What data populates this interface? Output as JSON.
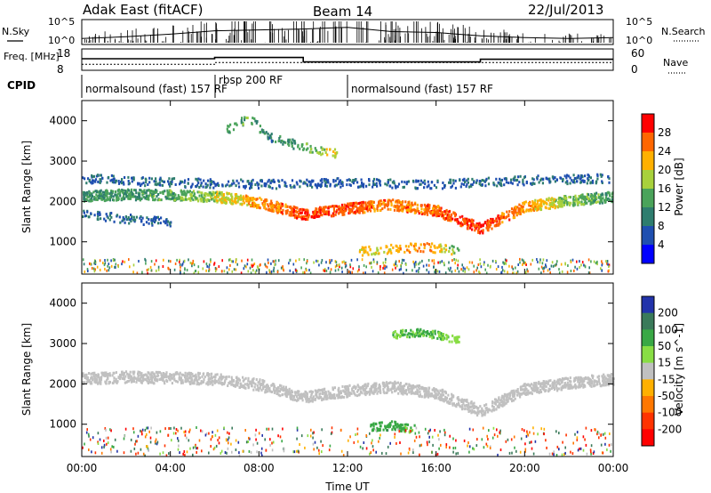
{
  "header": {
    "radar": "Adak East (fitACF)",
    "beam": "Beam 14",
    "date": "22/Jul/2013"
  },
  "colors": {
    "sky_noise": "#000000",
    "search_noise": "#000000",
    "freq": "#000000",
    "nave": "#000000"
  },
  "chart_data": [
    {
      "type": "line",
      "panel": "noise",
      "left_label": "N.Sky",
      "right_label": "N.Search",
      "left_ticks": [
        "10^5",
        "10^0"
      ],
      "right_ticks": [
        "10^5",
        "10^0"
      ],
      "x": [
        0,
        2,
        4,
        6,
        8,
        10,
        12,
        14,
        16,
        18,
        20,
        22,
        24
      ],
      "series": [
        {
          "values": [
            1.0,
            1.4,
            2.0,
            2.8,
            3.0,
            3.2,
            3.6,
            2.6,
            2.4,
            1.6,
            1.2,
            1.0,
            1.2
          ]
        }
      ]
    },
    {
      "type": "line",
      "panel": "frequency",
      "left_label": "Freq. [MHz]",
      "right_label": "Nave",
      "left_ticks": [
        "18",
        "8"
      ],
      "right_ticks": [
        "60",
        "0"
      ],
      "ylim": [
        8,
        18
      ],
      "x": [
        0,
        6,
        6,
        10,
        10,
        18,
        18,
        24
      ],
      "series": [
        {
          "values": [
            13.5,
            13.5,
            14.2,
            14.2,
            11.7,
            11.7,
            13.2,
            13.2
          ]
        }
      ],
      "nave": {
        "x": [
          0,
          6,
          6,
          24
        ],
        "values": [
          14,
          14,
          20,
          20
        ]
      }
    },
    {
      "type": "table",
      "panel": "cpid",
      "label": "CPID",
      "segments": [
        {
          "name": "normalsound (fast) 157 RF",
          "start": 0,
          "end": 6
        },
        {
          "name": "rbsp 200 RF",
          "start": 6,
          "end": 12
        },
        {
          "name": "normalsound (fast) 157 RF",
          "start": 12,
          "end": 24
        }
      ]
    },
    {
      "type": "heatmap",
      "panel": "power",
      "ylabel": "Slant Range [km]",
      "ylim": [
        200,
        4500
      ],
      "yticks": [
        1000,
        2000,
        3000,
        4000
      ],
      "xlim": [
        0,
        24
      ],
      "colorbar": {
        "label": "Power [dB]",
        "ticks": [
          "28",
          "24",
          "20",
          "16",
          "12",
          "8",
          "4"
        ],
        "colors": [
          "#ff0000",
          "#ff6600",
          "#ffb000",
          "#a8d13c",
          "#4aa35a",
          "#2e7d6e",
          "#1f4fb0",
          "#0000ff"
        ]
      },
      "features": [
        {
          "desc": "main band",
          "x": [
            0,
            2,
            4,
            6,
            8,
            10,
            12,
            14,
            16,
            18,
            20,
            22,
            24
          ],
          "range_km": [
            2150,
            2200,
            2180,
            2150,
            2000,
            1700,
            1850,
            1950,
            1800,
            1350,
            1900,
            2050,
            2150
          ],
          "power_db": [
            10,
            11,
            12,
            16,
            22,
            26,
            25,
            23,
            24,
            26,
            22,
            14,
            10
          ]
        },
        {
          "desc": "upper band",
          "x": [
            0,
            4,
            8,
            12,
            16,
            20,
            24
          ],
          "range_km": [
            2600,
            2500,
            2450,
            2500,
            2450,
            2550,
            2600
          ],
          "power_db": [
            6,
            6,
            5,
            5,
            5,
            6,
            6
          ]
        },
        {
          "desc": "lower echo",
          "x": [
            0,
            2,
            4
          ],
          "range_km": [
            1700,
            1600,
            1500
          ],
          "power_db": [
            6,
            6,
            5
          ]
        },
        {
          "desc": "morning clutter",
          "x": [
            12.5,
            14,
            15.5,
            17
          ],
          "range_km": [
            800,
            850,
            900,
            800
          ],
          "power_db": [
            18,
            20,
            22,
            14
          ]
        },
        {
          "desc": "high range patch",
          "x": [
            6.5,
            7.5,
            8.5,
            10.5,
            11.5
          ],
          "range_km": [
            3800,
            4100,
            3600,
            3300,
            3200
          ],
          "power_db": [
            10,
            12,
            8,
            14,
            18
          ]
        }
      ]
    },
    {
      "type": "heatmap",
      "panel": "velocity",
      "xlabel": "Time UT",
      "ylabel": "Slant Range [km]",
      "ylim": [
        200,
        4500
      ],
      "yticks": [
        1000,
        2000,
        3000,
        4000
      ],
      "xlim": [
        0,
        24
      ],
      "xticks": [
        "00:00",
        "04:00",
        "08:00",
        "12:00",
        "16:00",
        "20:00",
        "00:00"
      ],
      "colorbar": {
        "label": "Velocity [m s^-1]",
        "ticks": [
          "200",
          "100",
          "50",
          "15",
          "-15",
          "-50",
          "-100",
          "-200"
        ],
        "colors": [
          "#2233aa",
          "#3a7a5a",
          "#39a845",
          "#88dd44",
          "#c0c0c0",
          "#ffb000",
          "#ff7700",
          "#ff3300",
          "#ff0000"
        ]
      },
      "features": [
        {
          "desc": "ground scatter band",
          "x": [
            0,
            2,
            4,
            6,
            8,
            10,
            12,
            14,
            16,
            18,
            20,
            22,
            24
          ],
          "range_km": [
            2150,
            2200,
            2180,
            2150,
            2000,
            1700,
            1850,
            1950,
            1800,
            1350,
            1900,
            2050,
            2150
          ],
          "velocity": [
            0,
            0,
            0,
            0,
            0,
            0,
            0,
            0,
            0,
            0,
            0,
            0,
            0
          ]
        },
        {
          "desc": "positive velocity echo",
          "x": [
            13,
            14,
            15
          ],
          "range_km": [
            950,
            1000,
            900
          ],
          "velocity": [
            60,
            80,
            50
          ]
        },
        {
          "desc": "high range echo",
          "x": [
            14,
            15.5,
            17
          ],
          "range_km": [
            3250,
            3300,
            3100
          ],
          "velocity": [
            40,
            60,
            30
          ]
        }
      ]
    }
  ]
}
